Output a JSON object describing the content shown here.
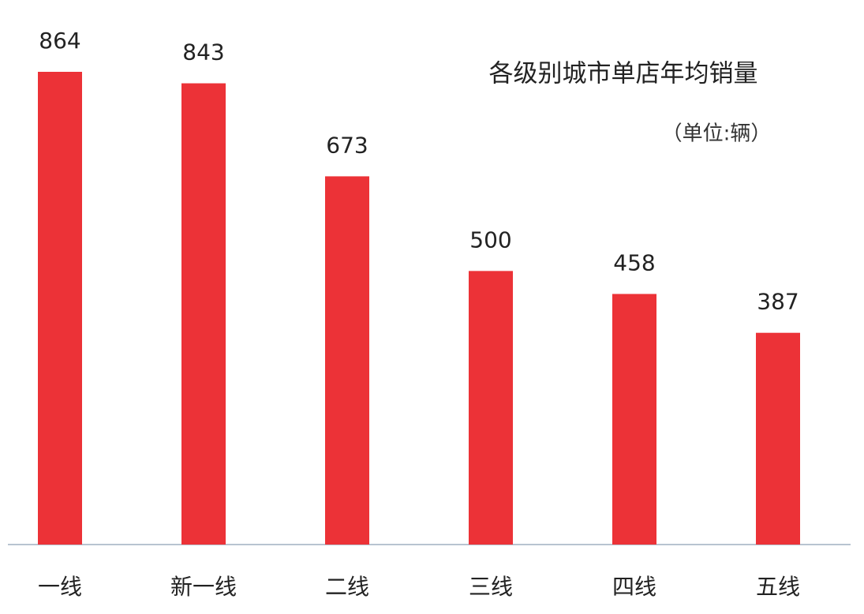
{
  "chart_data": {
    "type": "bar",
    "title": "各级别城市单店年均销量",
    "subtitle": "（单位:辆）",
    "categories": [
      "一线",
      "新一线",
      "二线",
      "三线",
      "四线",
      "五线"
    ],
    "values": [
      864,
      843,
      673,
      500,
      458,
      387
    ],
    "color": "#ec3237"
  }
}
